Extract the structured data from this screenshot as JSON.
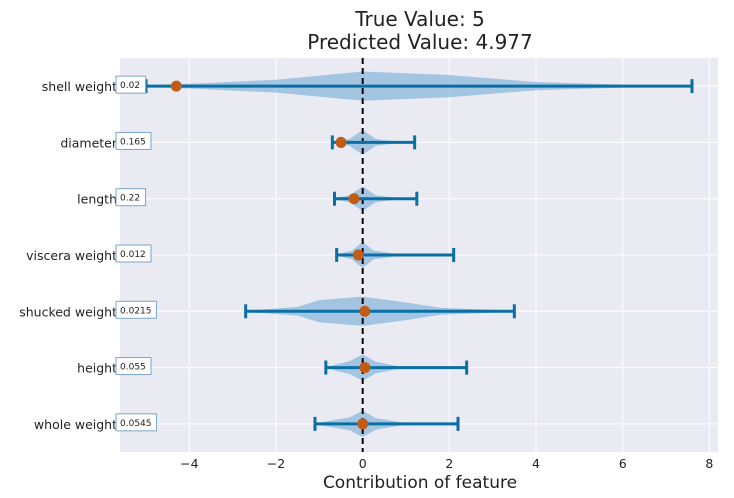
{
  "chart_data": {
    "type": "violin-errorbar",
    "title_line1": "True Value: 5",
    "title_line2": "Predicted Value: 4.977",
    "xlabel": "Contribution of feature",
    "xlim": [
      -5.6,
      8.2
    ],
    "xticks": [
      -4,
      -2,
      0,
      2,
      4,
      6,
      8
    ],
    "xtick_labels": [
      "−4",
      "−2",
      "0",
      "2",
      "4",
      "6",
      "8"
    ],
    "reference_line_x": 0,
    "features": [
      {
        "name": "shell weight",
        "value_label": "0.02",
        "contribution": -4.3,
        "lower": -5.0,
        "upper": 7.6,
        "violin": [
          [
            -5.2,
            0.02
          ],
          [
            -4.0,
            0.08
          ],
          [
            -2.0,
            0.22
          ],
          [
            0.0,
            0.5
          ],
          [
            2.0,
            0.38
          ],
          [
            4.0,
            0.14
          ],
          [
            6.0,
            0.05
          ],
          [
            7.6,
            0.02
          ]
        ]
      },
      {
        "name": "diameter",
        "value_label": "0.165",
        "contribution": -0.5,
        "lower": -0.7,
        "upper": 1.2,
        "violin": [
          [
            -0.7,
            0.02
          ],
          [
            -0.3,
            0.12
          ],
          [
            0.0,
            0.42
          ],
          [
            0.3,
            0.12
          ],
          [
            0.7,
            0.04
          ],
          [
            1.2,
            0.02
          ]
        ]
      },
      {
        "name": "length",
        "value_label": "0.22",
        "contribution": -0.2,
        "lower": -0.65,
        "upper": 1.25,
        "violin": [
          [
            -0.65,
            0.02
          ],
          [
            -0.3,
            0.12
          ],
          [
            0.0,
            0.42
          ],
          [
            0.3,
            0.12
          ],
          [
            0.7,
            0.04
          ],
          [
            1.25,
            0.02
          ]
        ]
      },
      {
        "name": "viscera weight",
        "value_label": "0.012",
        "contribution": -0.1,
        "lower": -0.6,
        "upper": 2.1,
        "violin": [
          [
            -0.6,
            0.02
          ],
          [
            -0.25,
            0.15
          ],
          [
            0.0,
            0.45
          ],
          [
            0.25,
            0.15
          ],
          [
            0.8,
            0.04
          ],
          [
            2.1,
            0.02
          ]
        ]
      },
      {
        "name": "shucked weight",
        "value_label": "0.0215",
        "contribution": 0.05,
        "lower": -2.7,
        "upper": 3.5,
        "violin": [
          [
            -2.7,
            0.02
          ],
          [
            -1.5,
            0.15
          ],
          [
            -1.0,
            0.38
          ],
          [
            0.0,
            0.5
          ],
          [
            1.0,
            0.3
          ],
          [
            1.8,
            0.12
          ],
          [
            3.5,
            0.02
          ]
        ]
      },
      {
        "name": "height",
        "value_label": "0.055",
        "contribution": 0.05,
        "lower": -0.85,
        "upper": 2.4,
        "violin": [
          [
            -0.85,
            0.02
          ],
          [
            -0.3,
            0.22
          ],
          [
            0.0,
            0.45
          ],
          [
            0.3,
            0.2
          ],
          [
            0.8,
            0.05
          ],
          [
            2.4,
            0.02
          ]
        ]
      },
      {
        "name": "whole weight",
        "value_label": "0.0545",
        "contribution": 0.0,
        "lower": -1.1,
        "upper": 2.2,
        "violin": [
          [
            -1.1,
            0.02
          ],
          [
            -0.3,
            0.22
          ],
          [
            0.0,
            0.45
          ],
          [
            0.3,
            0.2
          ],
          [
            0.9,
            0.05
          ],
          [
            2.2,
            0.02
          ]
        ]
      }
    ],
    "colors": {
      "plot_bg": "#eaeaf2",
      "grid": "#ffffff",
      "violin": "#8bb8dc",
      "errorbar": "#0a6fa3",
      "marker": "#c25b14",
      "vline": "#000000",
      "label_box_border": "#7aa6c6",
      "label_box_bg": "#ffffff",
      "text": "#222222"
    }
  }
}
